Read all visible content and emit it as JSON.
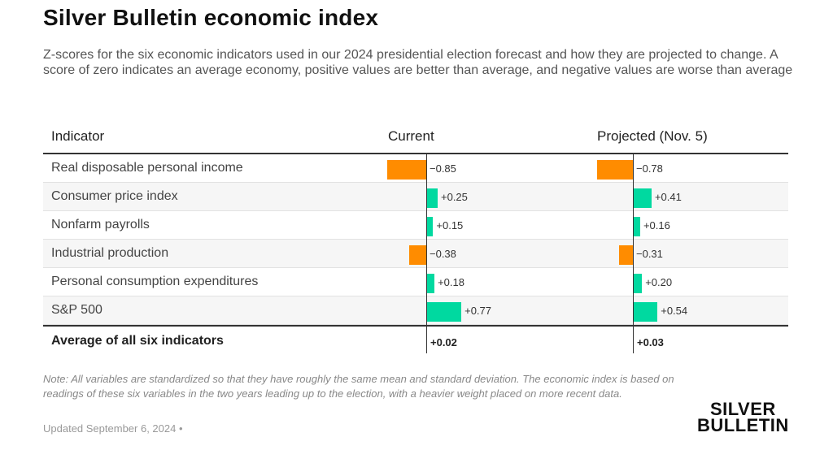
{
  "title": "Silver Bulletin economic index",
  "subtitle": "Z-scores for the six economic indicators used in our 2024 presidential election forecast and how they are projected to change. A score of zero indicates an average economy, positive values are better than average, and negative values are worse than average",
  "table": {
    "col_indicator": "Indicator",
    "col_current": "Current",
    "col_projected": "Projected (Nov. 5)",
    "average_label": "Average of all six indicators",
    "average_current": "+0.02",
    "average_projected": "+0.03"
  },
  "colors": {
    "positive": "#00d9a0",
    "negative": "#ff8c00",
    "axis": "#333333"
  },
  "chart_data": {
    "type": "bar",
    "categories": [
      "Real disposable personal income",
      "Consumer price index",
      "Nonfarm payrolls",
      "Industrial production",
      "Personal consumption expenditures",
      "S&P 500"
    ],
    "series": [
      {
        "name": "Current",
        "values": [
          -0.85,
          0.25,
          0.15,
          -0.38,
          0.18,
          0.77
        ],
        "labels": [
          "−0.85",
          "+0.25",
          "+0.15",
          "−0.38",
          "+0.18",
          "+0.77"
        ]
      },
      {
        "name": "Projected (Nov. 5)",
        "values": [
          -0.78,
          0.41,
          0.16,
          -0.31,
          0.2,
          0.54
        ],
        "labels": [
          "−0.78",
          "+0.41",
          "+0.16",
          "−0.31",
          "+0.20",
          "+0.54"
        ]
      }
    ]
  },
  "note": "Note: All variables are standardized so that they have roughly the same mean and standard deviation. The economic index is based on readings of these six variables in the two years leading up to the election, with a heavier weight placed on more recent data.",
  "updated": "Updated September 6, 2024 •",
  "logo": {
    "line1": "SILVER",
    "line2": "BULLETIN"
  }
}
